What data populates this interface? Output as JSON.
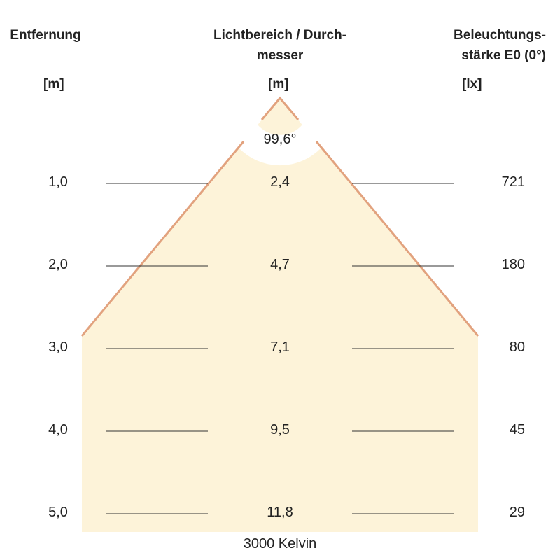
{
  "headers": {
    "distance": {
      "title": "Entfernung",
      "unit": "[m]"
    },
    "diameter": {
      "title_line1": "Lichtbereich / Durch-",
      "title_line2": "messer",
      "unit": "[m]"
    },
    "illuminance": {
      "title_line1": "Beleuchtungs-",
      "title_line2": "stärke E0 (0°)",
      "unit": "[lx]"
    }
  },
  "beam_angle": "99,6°",
  "rows": [
    {
      "distance": "1,0",
      "diameter": "2,4",
      "lux": "721"
    },
    {
      "distance": "2,0",
      "diameter": "4,7",
      "lux": "180"
    },
    {
      "distance": "3,0",
      "diameter": "7,1",
      "lux": "80"
    },
    {
      "distance": "4,0",
      "diameter": "9,5",
      "lux": "45"
    },
    {
      "distance": "5,0",
      "diameter": "11,8",
      "lux": "29"
    }
  ],
  "color_temperature": "3000 Kelvin",
  "colors": {
    "beam_fill": "#fdf3d9",
    "beam_edge": "#e2a27e",
    "guide_line": "#333333"
  }
}
